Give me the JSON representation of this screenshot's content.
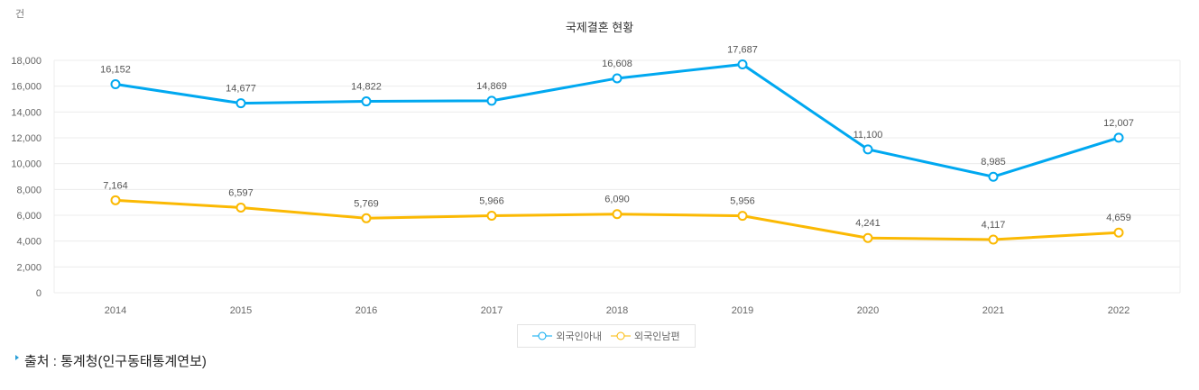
{
  "chart_data": {
    "type": "line",
    "title": "국제결혼 현황",
    "ylabel": "건",
    "categories": [
      "2014",
      "2015",
      "2016",
      "2017",
      "2018",
      "2019",
      "2020",
      "2021",
      "2022"
    ],
    "ylim": [
      0,
      18000
    ],
    "yticks": [
      0,
      2000,
      4000,
      6000,
      8000,
      10000,
      12000,
      14000,
      16000,
      18000
    ],
    "grid": true,
    "legend_position": "bottom",
    "series": [
      {
        "name": "외국인아내",
        "color": "#00a8f0",
        "values": [
          16152,
          14677,
          14822,
          14869,
          16608,
          17687,
          11100,
          8985,
          12007
        ]
      },
      {
        "name": "외국인남편",
        "color": "#fbb903",
        "values": [
          7164,
          6597,
          5769,
          5966,
          6090,
          5956,
          4241,
          4117,
          4659
        ]
      }
    ]
  },
  "source": "출처 : 통계청(인구동태통계연보)"
}
